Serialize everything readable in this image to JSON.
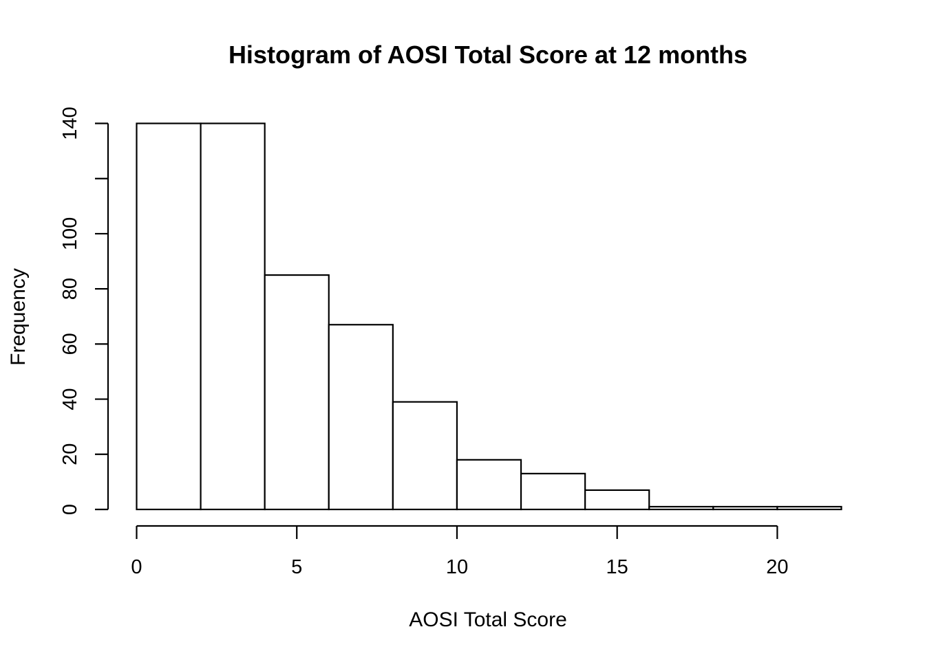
{
  "chart_data": {
    "type": "bar",
    "title": "Histogram of AOSI Total Score at 12 months",
    "xlabel": "AOSI Total Score",
    "ylabel": "Frequency",
    "bins": [
      {
        "start": 0,
        "end": 2,
        "count": 140
      },
      {
        "start": 2,
        "end": 4,
        "count": 140
      },
      {
        "start": 4,
        "end": 6,
        "count": 85
      },
      {
        "start": 6,
        "end": 8,
        "count": 67
      },
      {
        "start": 8,
        "end": 10,
        "count": 39
      },
      {
        "start": 10,
        "end": 12,
        "count": 18
      },
      {
        "start": 12,
        "end": 14,
        "count": 13
      },
      {
        "start": 14,
        "end": 16,
        "count": 7
      },
      {
        "start": 16,
        "end": 18,
        "count": 1
      },
      {
        "start": 18,
        "end": 20,
        "count": 1
      },
      {
        "start": 20,
        "end": 22,
        "count": 1
      }
    ],
    "x_ticks": [
      "0",
      "5",
      "10",
      "15",
      "20"
    ],
    "y_ticks": [
      "0",
      "20",
      "40",
      "60",
      "80",
      "100",
      "120",
      "140"
    ],
    "y_tick_labels": [
      "0",
      "20",
      "40",
      "60",
      "80",
      "100",
      "",
      "140"
    ],
    "xlim": [
      0,
      22
    ],
    "ylim": [
      0,
      140
    ],
    "grid": false,
    "legend": "none"
  }
}
